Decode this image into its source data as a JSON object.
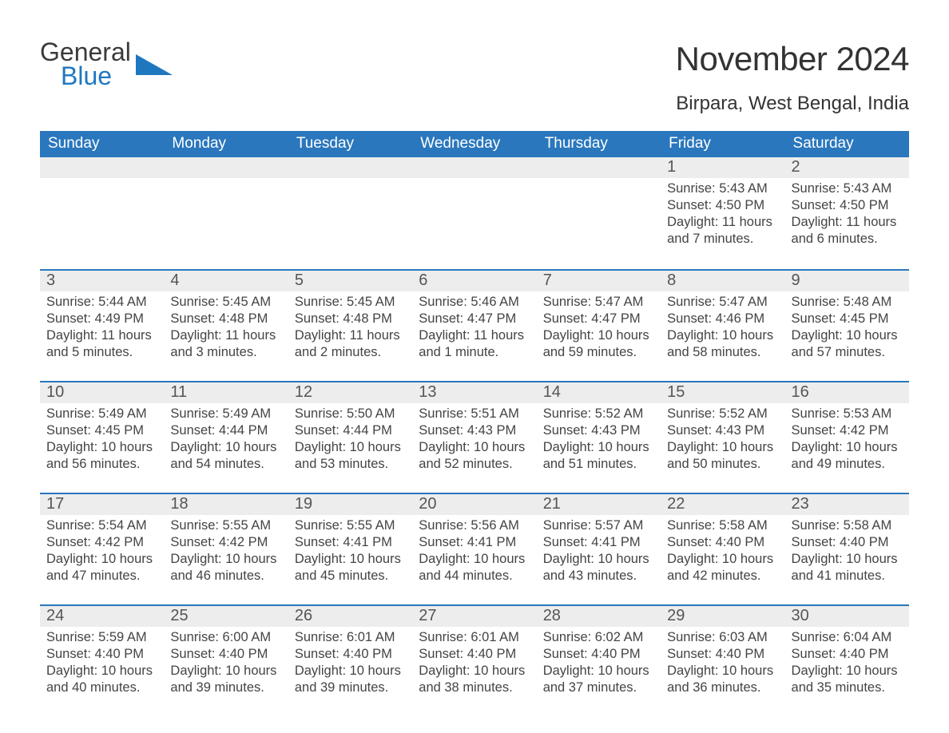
{
  "brand": {
    "line1": "General",
    "line2": "Blue",
    "accent": "#1f77c0",
    "text_color": "#3a3a3a"
  },
  "title": "November 2024",
  "location": "Birpara, West Bengal, India",
  "header_bg": "#2a77bd",
  "day_bg": "#ededed",
  "columns": [
    "Sunday",
    "Monday",
    "Tuesday",
    "Wednesday",
    "Thursday",
    "Friday",
    "Saturday"
  ],
  "weeks": [
    [
      null,
      null,
      null,
      null,
      null,
      {
        "n": "1",
        "sunrise": "Sunrise: 5:43 AM",
        "sunset": "Sunset: 4:50 PM",
        "daylight": "Daylight: 11 hours and 7 minutes."
      },
      {
        "n": "2",
        "sunrise": "Sunrise: 5:43 AM",
        "sunset": "Sunset: 4:50 PM",
        "daylight": "Daylight: 11 hours and 6 minutes."
      }
    ],
    [
      {
        "n": "3",
        "sunrise": "Sunrise: 5:44 AM",
        "sunset": "Sunset: 4:49 PM",
        "daylight": "Daylight: 11 hours and 5 minutes."
      },
      {
        "n": "4",
        "sunrise": "Sunrise: 5:45 AM",
        "sunset": "Sunset: 4:48 PM",
        "daylight": "Daylight: 11 hours and 3 minutes."
      },
      {
        "n": "5",
        "sunrise": "Sunrise: 5:45 AM",
        "sunset": "Sunset: 4:48 PM",
        "daylight": "Daylight: 11 hours and 2 minutes."
      },
      {
        "n": "6",
        "sunrise": "Sunrise: 5:46 AM",
        "sunset": "Sunset: 4:47 PM",
        "daylight": "Daylight: 11 hours and 1 minute."
      },
      {
        "n": "7",
        "sunrise": "Sunrise: 5:47 AM",
        "sunset": "Sunset: 4:47 PM",
        "daylight": "Daylight: 10 hours and 59 minutes."
      },
      {
        "n": "8",
        "sunrise": "Sunrise: 5:47 AM",
        "sunset": "Sunset: 4:46 PM",
        "daylight": "Daylight: 10 hours and 58 minutes."
      },
      {
        "n": "9",
        "sunrise": "Sunrise: 5:48 AM",
        "sunset": "Sunset: 4:45 PM",
        "daylight": "Daylight: 10 hours and 57 minutes."
      }
    ],
    [
      {
        "n": "10",
        "sunrise": "Sunrise: 5:49 AM",
        "sunset": "Sunset: 4:45 PM",
        "daylight": "Daylight: 10 hours and 56 minutes."
      },
      {
        "n": "11",
        "sunrise": "Sunrise: 5:49 AM",
        "sunset": "Sunset: 4:44 PM",
        "daylight": "Daylight: 10 hours and 54 minutes."
      },
      {
        "n": "12",
        "sunrise": "Sunrise: 5:50 AM",
        "sunset": "Sunset: 4:44 PM",
        "daylight": "Daylight: 10 hours and 53 minutes."
      },
      {
        "n": "13",
        "sunrise": "Sunrise: 5:51 AM",
        "sunset": "Sunset: 4:43 PM",
        "daylight": "Daylight: 10 hours and 52 minutes."
      },
      {
        "n": "14",
        "sunrise": "Sunrise: 5:52 AM",
        "sunset": "Sunset: 4:43 PM",
        "daylight": "Daylight: 10 hours and 51 minutes."
      },
      {
        "n": "15",
        "sunrise": "Sunrise: 5:52 AM",
        "sunset": "Sunset: 4:43 PM",
        "daylight": "Daylight: 10 hours and 50 minutes."
      },
      {
        "n": "16",
        "sunrise": "Sunrise: 5:53 AM",
        "sunset": "Sunset: 4:42 PM",
        "daylight": "Daylight: 10 hours and 49 minutes."
      }
    ],
    [
      {
        "n": "17",
        "sunrise": "Sunrise: 5:54 AM",
        "sunset": "Sunset: 4:42 PM",
        "daylight": "Daylight: 10 hours and 47 minutes."
      },
      {
        "n": "18",
        "sunrise": "Sunrise: 5:55 AM",
        "sunset": "Sunset: 4:42 PM",
        "daylight": "Daylight: 10 hours and 46 minutes."
      },
      {
        "n": "19",
        "sunrise": "Sunrise: 5:55 AM",
        "sunset": "Sunset: 4:41 PM",
        "daylight": "Daylight: 10 hours and 45 minutes."
      },
      {
        "n": "20",
        "sunrise": "Sunrise: 5:56 AM",
        "sunset": "Sunset: 4:41 PM",
        "daylight": "Daylight: 10 hours and 44 minutes."
      },
      {
        "n": "21",
        "sunrise": "Sunrise: 5:57 AM",
        "sunset": "Sunset: 4:41 PM",
        "daylight": "Daylight: 10 hours and 43 minutes."
      },
      {
        "n": "22",
        "sunrise": "Sunrise: 5:58 AM",
        "sunset": "Sunset: 4:40 PM",
        "daylight": "Daylight: 10 hours and 42 minutes."
      },
      {
        "n": "23",
        "sunrise": "Sunrise: 5:58 AM",
        "sunset": "Sunset: 4:40 PM",
        "daylight": "Daylight: 10 hours and 41 minutes."
      }
    ],
    [
      {
        "n": "24",
        "sunrise": "Sunrise: 5:59 AM",
        "sunset": "Sunset: 4:40 PM",
        "daylight": "Daylight: 10 hours and 40 minutes."
      },
      {
        "n": "25",
        "sunrise": "Sunrise: 6:00 AM",
        "sunset": "Sunset: 4:40 PM",
        "daylight": "Daylight: 10 hours and 39 minutes."
      },
      {
        "n": "26",
        "sunrise": "Sunrise: 6:01 AM",
        "sunset": "Sunset: 4:40 PM",
        "daylight": "Daylight: 10 hours and 39 minutes."
      },
      {
        "n": "27",
        "sunrise": "Sunrise: 6:01 AM",
        "sunset": "Sunset: 4:40 PM",
        "daylight": "Daylight: 10 hours and 38 minutes."
      },
      {
        "n": "28",
        "sunrise": "Sunrise: 6:02 AM",
        "sunset": "Sunset: 4:40 PM",
        "daylight": "Daylight: 10 hours and 37 minutes."
      },
      {
        "n": "29",
        "sunrise": "Sunrise: 6:03 AM",
        "sunset": "Sunset: 4:40 PM",
        "daylight": "Daylight: 10 hours and 36 minutes."
      },
      {
        "n": "30",
        "sunrise": "Sunrise: 6:04 AM",
        "sunset": "Sunset: 4:40 PM",
        "daylight": "Daylight: 10 hours and 35 minutes."
      }
    ]
  ]
}
